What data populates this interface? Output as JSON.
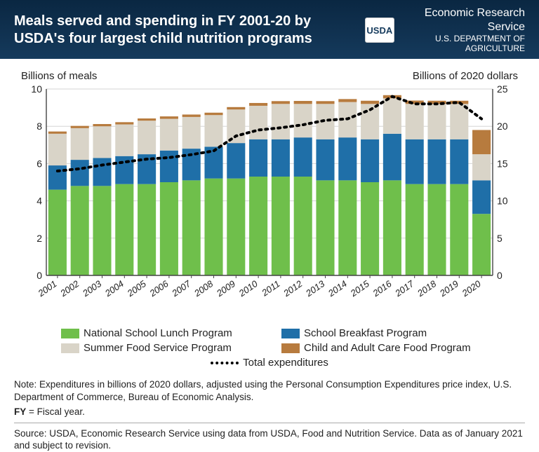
{
  "header": {
    "title": "Meals served and spending in FY 2001-20 by USDA's four largest child nutrition programs",
    "agency_line1": "Economic Research Service",
    "agency_line2": "U.S. DEPARTMENT OF AGRICULTURE",
    "badge": "USDA"
  },
  "chart": {
    "type": "stacked-bar-with-line",
    "left_axis_label": "Billions of meals",
    "right_axis_label": "Billions of 2020 dollars",
    "ylim_left": [
      0,
      10
    ],
    "ytick_left": [
      0,
      2,
      4,
      6,
      8,
      10
    ],
    "ylim_right": [
      0,
      25
    ],
    "ytick_right": [
      0,
      5,
      10,
      15,
      20,
      25
    ],
    "categories": [
      "2001",
      "2002",
      "2003",
      "2004",
      "2005",
      "2006",
      "2007",
      "2008",
      "2009",
      "2010",
      "2011",
      "2012",
      "2013",
      "2014",
      "2015",
      "2016",
      "2017",
      "2018",
      "2019",
      "2020"
    ],
    "series": [
      {
        "name": "National School Lunch Program",
        "color": "#6fbf4b",
        "values": [
          4.6,
          4.8,
          4.8,
          4.9,
          4.9,
          5.0,
          5.1,
          5.2,
          5.2,
          5.3,
          5.3,
          5.3,
          5.1,
          5.1,
          5.0,
          5.1,
          4.9,
          4.9,
          4.9,
          3.3
        ]
      },
      {
        "name": "School Breakfast Program",
        "color": "#1f6fa8",
        "values": [
          1.3,
          1.4,
          1.5,
          1.5,
          1.6,
          1.7,
          1.7,
          1.7,
          1.9,
          2.0,
          2.0,
          2.1,
          2.2,
          2.3,
          2.3,
          2.5,
          2.4,
          2.4,
          2.4,
          1.8
        ]
      },
      {
        "name": "Summer Food Service Program",
        "color": "#d9d4c8",
        "values": [
          1.7,
          1.7,
          1.7,
          1.7,
          1.8,
          1.7,
          1.7,
          1.7,
          1.8,
          1.8,
          1.9,
          1.8,
          1.9,
          1.9,
          1.9,
          1.9,
          1.9,
          1.9,
          1.9,
          1.4
        ]
      },
      {
        "name": "Child and Adult Care Food Program",
        "color": "#b77b3e",
        "values": [
          0.12,
          0.12,
          0.12,
          0.12,
          0.12,
          0.13,
          0.13,
          0.13,
          0.13,
          0.15,
          0.15,
          0.16,
          0.15,
          0.16,
          0.17,
          0.17,
          0.18,
          0.17,
          0.17,
          1.3
        ]
      }
    ],
    "line": {
      "name": "Total expenditures",
      "axis": "right",
      "color": "#000000",
      "style": "dotted",
      "width": 4,
      "values": [
        14.0,
        14.3,
        14.8,
        15.2,
        15.6,
        15.8,
        16.2,
        16.7,
        18.7,
        19.5,
        19.8,
        20.2,
        20.8,
        21.0,
        22.2,
        24.0,
        23.0,
        23.0,
        23.2,
        21.0
      ]
    },
    "background_color": "#ffffff",
    "grid_color": "#d5d5d5",
    "axis_color": "#444444",
    "bar_gap": 0.18,
    "tick_fontsize": 13,
    "label_fontsize": 15
  },
  "legend": {
    "items": [
      {
        "label": "National School Lunch Program",
        "color": "#6fbf4b"
      },
      {
        "label": "School Breakfast Program",
        "color": "#1f6fa8"
      },
      {
        "label": "Summer Food Service Program",
        "color": "#d9d4c8"
      },
      {
        "label": "Child and Adult Care Food Program",
        "color": "#b77b3e"
      }
    ],
    "line_label": "Total expenditures"
  },
  "notes": {
    "note": "Note: Expenditures in billions of 2020 dollars, adjusted using the Personal Consumption Expenditures price index, U.S. Department of Commerce, Bureau of Economic Analysis.",
    "fy": "FY = Fiscal year.",
    "source": "Source: USDA, Economic Research Service using data from USDA, Food and Nutrition Service. Data as of January 2021 and subject to revision."
  }
}
